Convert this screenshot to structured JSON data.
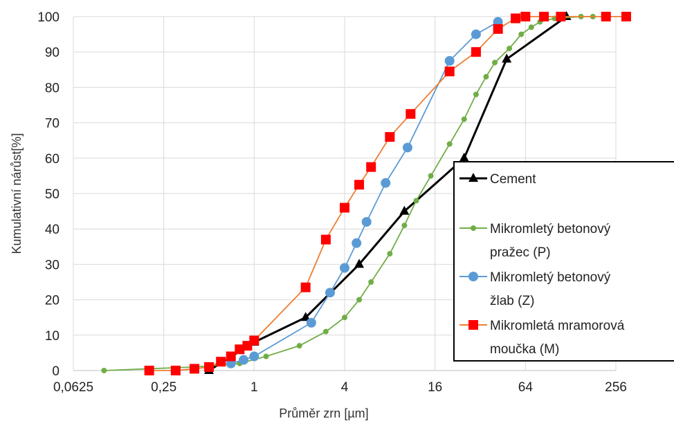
{
  "chart_data": {
    "type": "line",
    "xscale": "log2",
    "xlim": [
      0.0625,
      256
    ],
    "ylim": [
      0,
      100
    ],
    "xticks": [
      "0,0625",
      "0,25",
      "1",
      "4",
      "16",
      "64",
      "256"
    ],
    "yticks": [
      "0",
      "10",
      "20",
      "30",
      "40",
      "50",
      "60",
      "70",
      "80",
      "90",
      "100"
    ],
    "xlabel": "Průměr zrn [µm]",
    "ylabel": "Kumulativní nárůst[%]",
    "grid": true,
    "legend_position": "right",
    "series": [
      {
        "name": "Cement",
        "color": "#000000",
        "marker": "triangle",
        "x": [
          0.5,
          1,
          2.2,
          5,
          10,
          25,
          48,
          120
        ],
        "y": [
          0,
          8,
          15,
          30,
          45,
          60,
          88,
          100
        ]
      },
      {
        "name": "Mikromletý betonový pražec (P)",
        "color": "#70ad47",
        "marker": "circle-small",
        "x": [
          0.1,
          0.2,
          0.4,
          0.8,
          1.2,
          2,
          3,
          4,
          5,
          6,
          8,
          10,
          12,
          15,
          20,
          25,
          30,
          35,
          40,
          50,
          60,
          70,
          80,
          100,
          150,
          180
        ],
        "y": [
          0,
          0.5,
          1,
          2,
          4,
          7,
          11,
          15,
          20,
          25,
          33,
          41,
          48,
          55,
          64,
          71,
          78,
          83,
          87,
          91,
          95,
          97,
          98.5,
          99.5,
          100,
          100
        ]
      },
      {
        "name": "Mikromletý betonový žlab (Z)",
        "color": "#5b9bd5",
        "marker": "circle",
        "x": [
          0.7,
          0.85,
          1,
          2.4,
          3.2,
          4,
          4.8,
          5.6,
          7.5,
          10.5,
          20,
          30,
          42
        ],
        "y": [
          2,
          3,
          4,
          13.5,
          22,
          29,
          36,
          42,
          53,
          63,
          87.5,
          95,
          98.5
        ]
      },
      {
        "name": "Mikromletá mramorová moučka (M)",
        "color": "#ed7d31",
        "markerColor": "#ff0000",
        "marker": "square",
        "x": [
          0.2,
          0.3,
          0.4,
          0.5,
          0.6,
          0.7,
          0.8,
          0.9,
          1,
          2.2,
          3,
          4,
          5,
          6,
          8,
          11,
          20,
          30,
          42,
          55,
          64,
          85,
          110,
          220,
          300
        ],
        "y": [
          0,
          0,
          0.5,
          1,
          2.5,
          4,
          6,
          7,
          8.5,
          23.5,
          37,
          46,
          52.5,
          57.5,
          66,
          72.5,
          84.5,
          90,
          96.5,
          99.5,
          100,
          100,
          100,
          100,
          100
        ]
      }
    ]
  }
}
